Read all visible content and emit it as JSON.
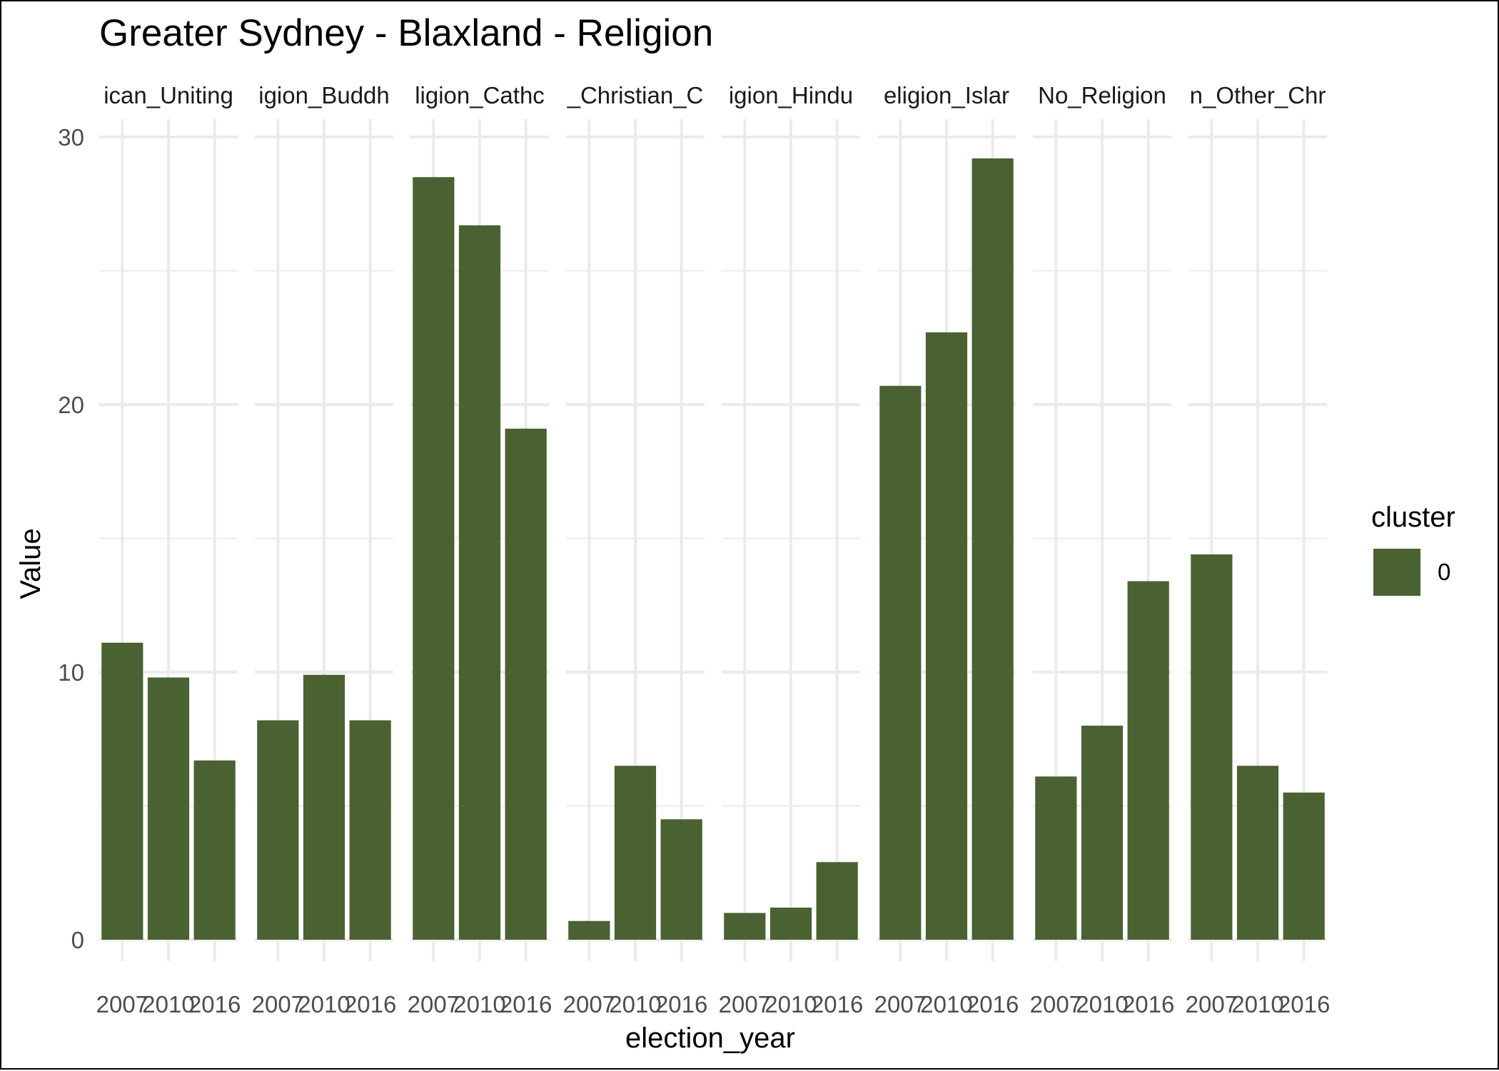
{
  "chart_data": {
    "type": "bar",
    "title": "Greater Sydney - Blaxland - Religion",
    "xlabel": "election_year",
    "ylabel": "Value",
    "ylim": [
      0,
      30
    ],
    "y_ticks": [
      "0",
      "10",
      "20",
      "30"
    ],
    "grid": true,
    "categories": [
      "2007",
      "2010",
      "2016"
    ],
    "facets": [
      {
        "label": "ican_Uniting",
        "values": [
          11.1,
          9.8,
          6.7
        ]
      },
      {
        "label": "igion_Buddh",
        "values": [
          8.2,
          9.9,
          8.2
        ]
      },
      {
        "label": "ligion_Cathc",
        "values": [
          28.5,
          26.7,
          19.1
        ]
      },
      {
        "label": "_Christian_C",
        "values": [
          0.7,
          6.5,
          4.5
        ]
      },
      {
        "label": "igion_Hindu",
        "values": [
          1.0,
          1.2,
          2.9
        ]
      },
      {
        "label": "eligion_Islar",
        "values": [
          20.7,
          22.7,
          29.2
        ]
      },
      {
        "label": "No_Religion",
        "values": [
          6.1,
          8.0,
          13.4
        ]
      },
      {
        "label": "n_Other_Chr",
        "values": [
          14.4,
          6.5,
          5.5
        ]
      }
    ],
    "legend": {
      "title": "cluster",
      "entries": [
        "0"
      ],
      "position": "right"
    },
    "bar_color": "#4a6132",
    "grid_color": "#ebebeb"
  }
}
